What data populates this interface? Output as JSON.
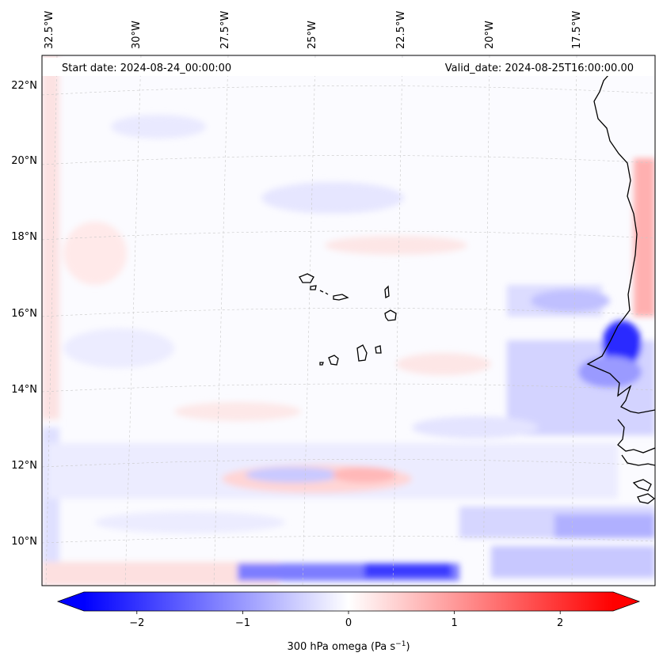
{
  "header": {
    "start_date": "Start date: 2024-08-24_00:00:00",
    "valid_date": "Valid_date: 2024-08-25T16:00:00.00"
  },
  "longitude_labels": [
    "32.5°W",
    "30°W",
    "27.5°W",
    "25°W",
    "22.5°W",
    "20°W",
    "17.5°W"
  ],
  "latitude_labels": [
    "22°N",
    "20°N",
    "18°N",
    "16°N",
    "14°N",
    "12°N",
    "10°N"
  ],
  "colorbar": {
    "ticks": [
      "−2",
      "−1",
      "0",
      "1",
      "2"
    ],
    "tick_values": [
      -2,
      -1,
      0,
      1,
      2
    ],
    "range": [
      -2.5,
      2.5
    ],
    "label": "300 hPa omega (Pa s",
    "label_exp": "−1",
    "label_close": ")",
    "low_color": "#0000ff",
    "mid_color": "#ffffff",
    "high_color": "#ff0000"
  },
  "map": {
    "coastline_color": "#000000",
    "field_name": "300 hPa omega"
  }
}
